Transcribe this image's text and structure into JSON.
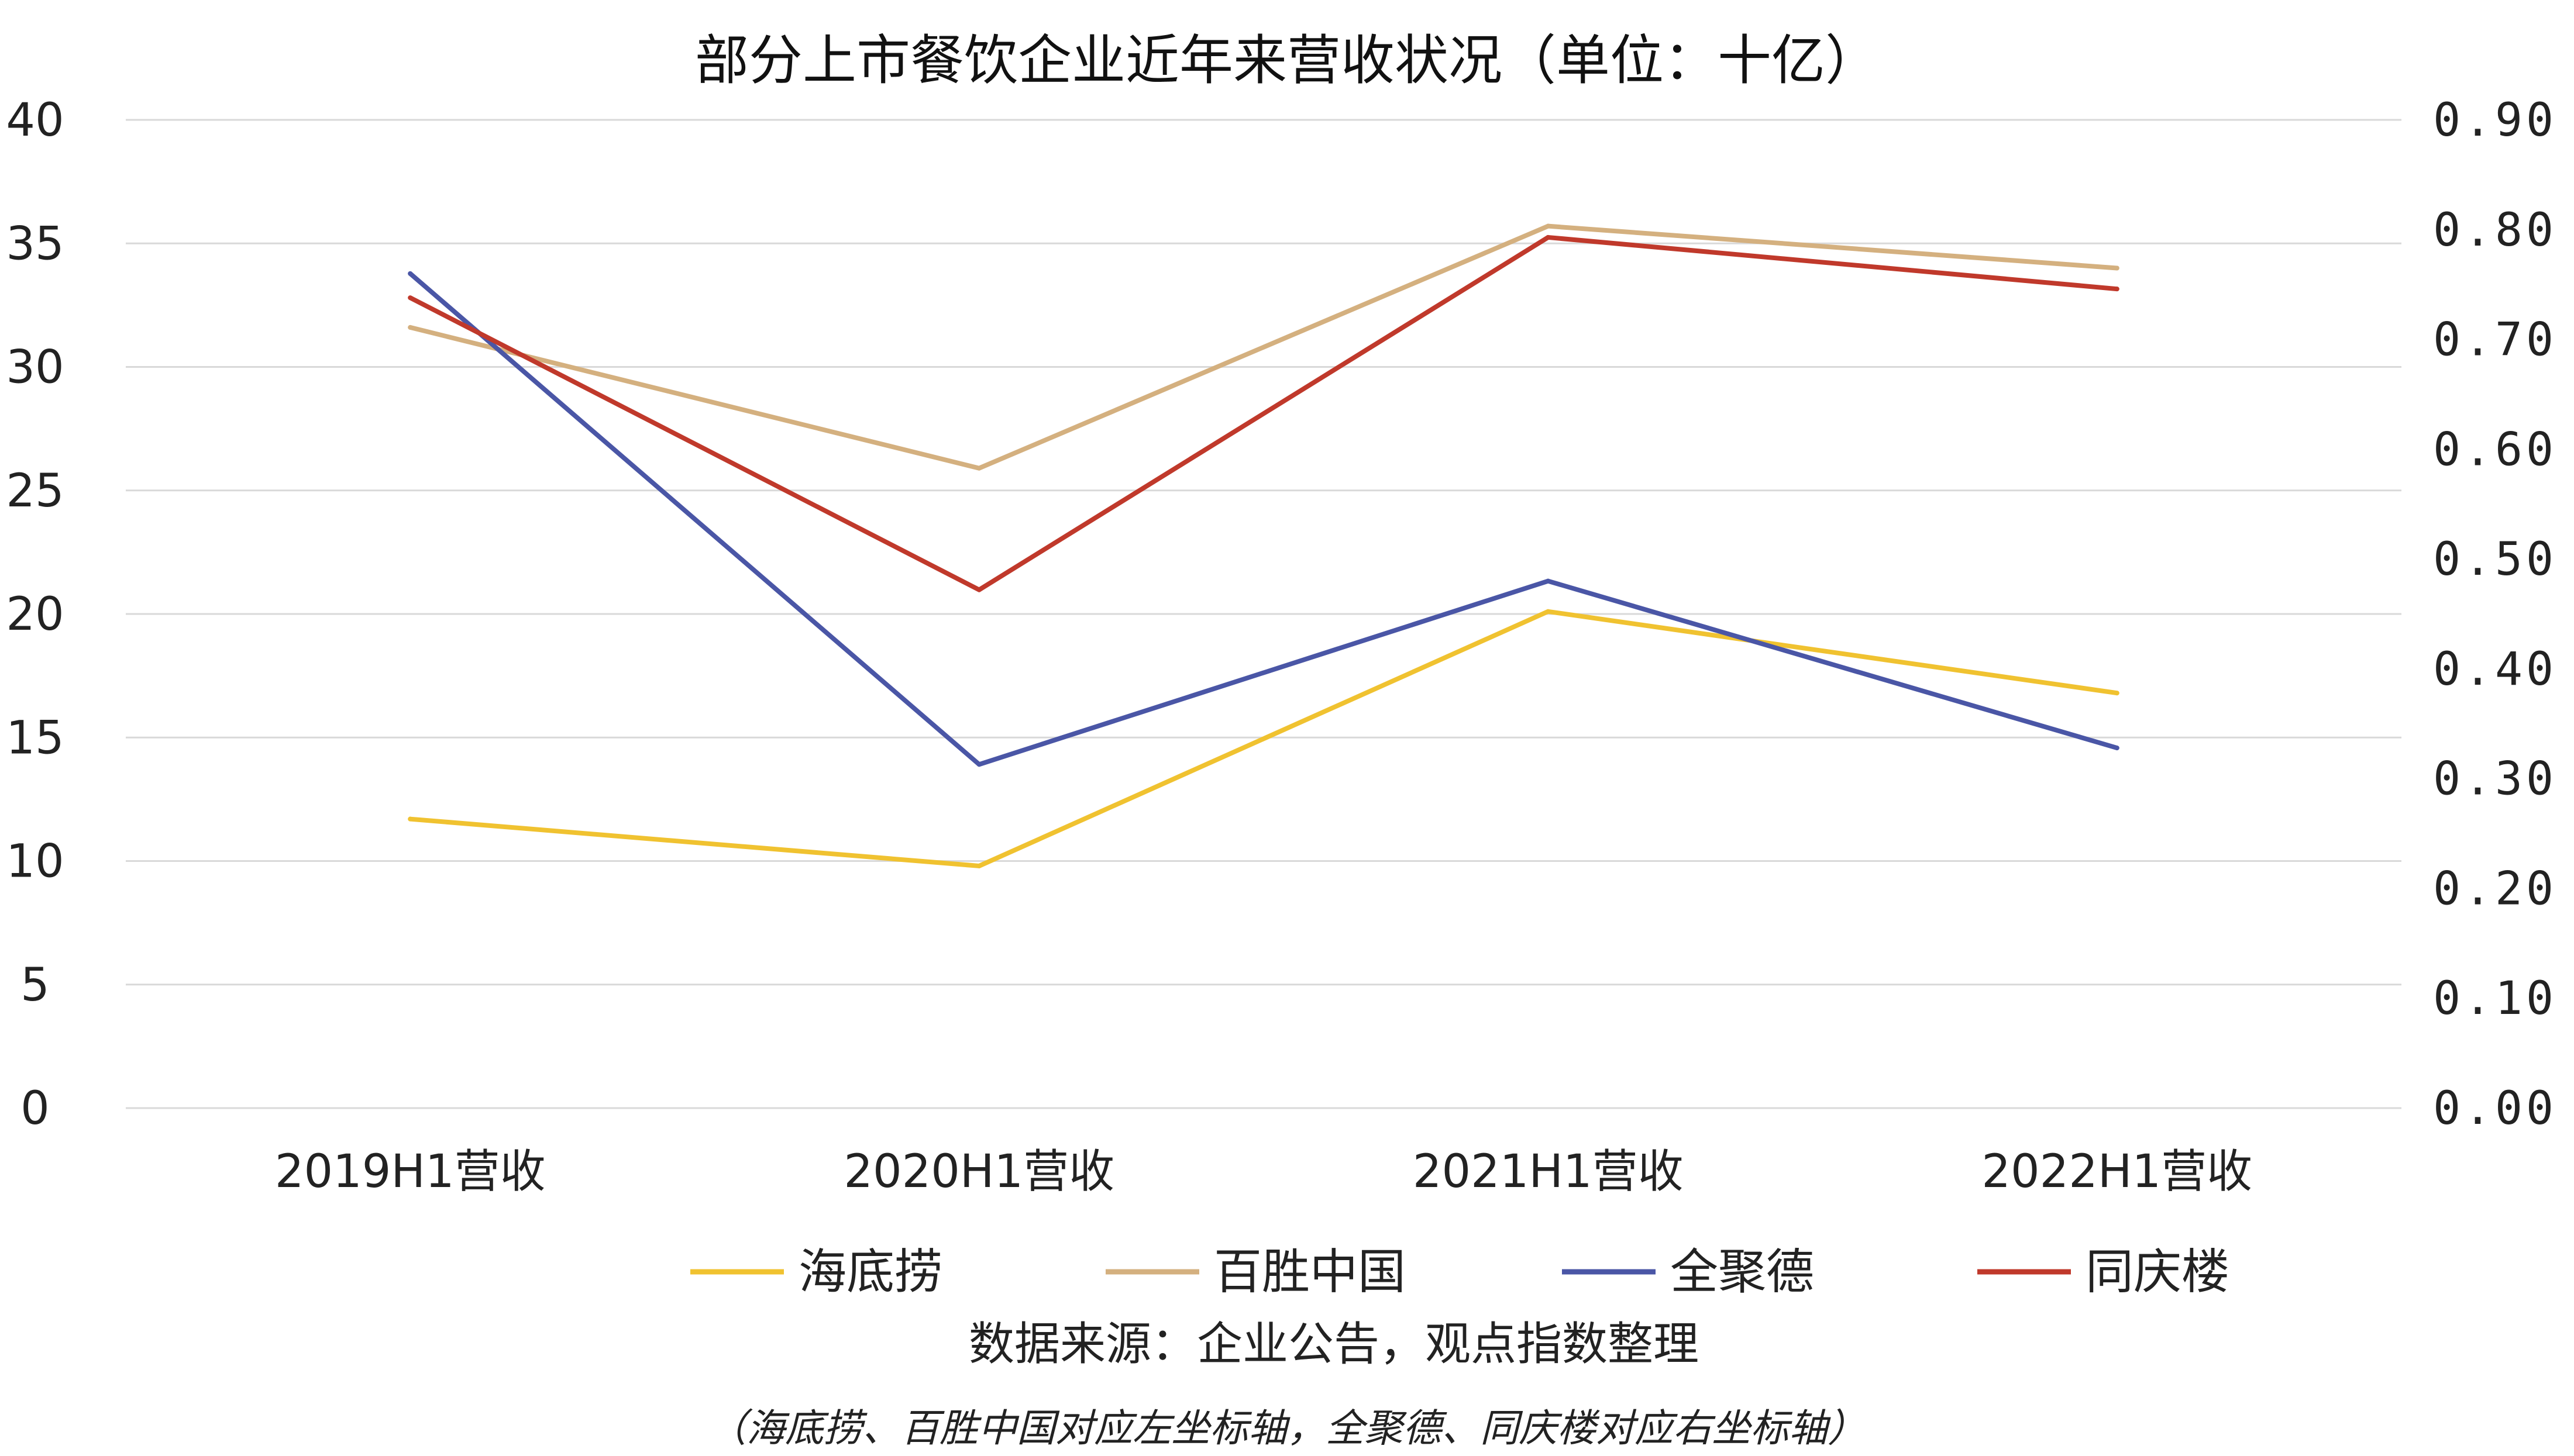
{
  "chart_data": {
    "type": "line",
    "title": "部分上市餐饮企业近年来营收状况（单位：十亿）",
    "categories": [
      "2019H1营收",
      "2020H1营收",
      "2021H1营收",
      "2022H1营收"
    ],
    "y_left": {
      "ylim": [
        0,
        40
      ],
      "ticks": [
        "0",
        "5",
        "10",
        "15",
        "20",
        "25",
        "30",
        "35",
        "40"
      ]
    },
    "y_right": {
      "ylim": [
        0,
        0.9
      ],
      "ticks": [
        "0.00",
        "0.10",
        "0.20",
        "0.30",
        "0.40",
        "0.50",
        "0.60",
        "0.70",
        "0.80",
        "0.90"
      ]
    },
    "grid": true,
    "legend_position": "bottom",
    "series": [
      {
        "name": "海底捞",
        "axis": "left",
        "color": "#f0c230",
        "values": [
          11.7,
          9.8,
          20.1,
          16.8
        ]
      },
      {
        "name": "百胜中国",
        "axis": "left",
        "color": "#d4b07f",
        "values": [
          31.6,
          25.9,
          35.7,
          34.0
        ]
      },
      {
        "name": "全聚德",
        "axis": "right",
        "color": "#4a56a6",
        "values": [
          0.76,
          0.313,
          0.48,
          0.328
        ]
      },
      {
        "name": "同庆楼",
        "axis": "right",
        "color": "#c0392b",
        "values": [
          0.738,
          0.472,
          0.793,
          0.746
        ]
      }
    ],
    "source": "数据来源：企业公告，观点指数整理",
    "note": "（海底捞、百胜中国对应左坐标轴，全聚德、同庆楼对应右坐标轴）"
  }
}
